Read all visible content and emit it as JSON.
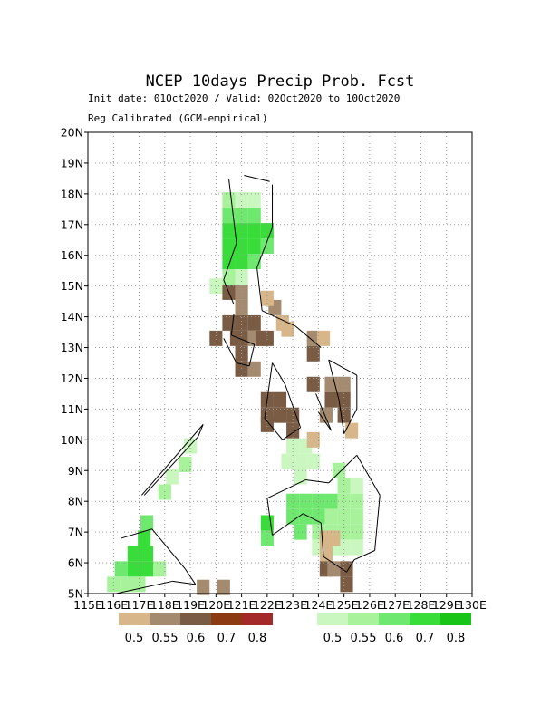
{
  "chart_data": {
    "type": "heatmap",
    "title": "NCEP 10days Precip Prob. Fcst",
    "subtitle_lines": [
      "Init date: 01Oct2020 / Valid: 02Oct2020 to 10Oct2020",
      "Reg Calibrated (GCM-empirical)"
    ],
    "xlim": [
      115,
      130
    ],
    "ylim": [
      5,
      20
    ],
    "grid": true,
    "cell_size_deg": 0.5,
    "x_ticks": [
      "115E",
      "116E",
      "117E",
      "118E",
      "119E",
      "120E",
      "121E",
      "122E",
      "123E",
      "124E",
      "125E",
      "126E",
      "127E",
      "128E",
      "129E",
      "130E"
    ],
    "y_ticks": [
      "5N",
      "6N",
      "7N",
      "8N",
      "9N",
      "10N",
      "11N",
      "12N",
      "13N",
      "14N",
      "15N",
      "16N",
      "17N",
      "18N",
      "19N",
      "20N"
    ],
    "legend_dry": {
      "colors": [
        "#D7B68A",
        "#A48A6E",
        "#7A5C44",
        "#8B3A12",
        "#A42A2A"
      ],
      "labels": [
        "0.5",
        "0.55",
        "0.6",
        "0.7",
        "0.8"
      ]
    },
    "legend_wet": {
      "colors": [
        "#C9F7BF",
        "#A8F29C",
        "#6FE86F",
        "#39DD39",
        "#18C418"
      ],
      "labels": [
        "0.5",
        "0.55",
        "0.6",
        "0.7",
        "0.8"
      ]
    },
    "cells_wet": [
      [
        120.5,
        17.8,
        1
      ],
      [
        121,
        17.8,
        0
      ],
      [
        121.5,
        17.8,
        0
      ],
      [
        120.5,
        17.3,
        2
      ],
      [
        121,
        17.3,
        2
      ],
      [
        121.5,
        17.3,
        2
      ],
      [
        120.5,
        16.8,
        3
      ],
      [
        121,
        16.8,
        3
      ],
      [
        121.5,
        16.8,
        3
      ],
      [
        122,
        16.8,
        3
      ],
      [
        120.5,
        16.3,
        3
      ],
      [
        121,
        16.3,
        3
      ],
      [
        121.5,
        16.3,
        3
      ],
      [
        122,
        16.3,
        2
      ],
      [
        120.5,
        15.8,
        3
      ],
      [
        121,
        15.8,
        3
      ],
      [
        121.5,
        15.8,
        2
      ],
      [
        120.5,
        15.3,
        1
      ],
      [
        121,
        15.3,
        0
      ],
      [
        120,
        15,
        0
      ],
      [
        119,
        9.8,
        0
      ],
      [
        118.8,
        9.2,
        1
      ],
      [
        118.3,
        8.8,
        0
      ],
      [
        118,
        8.3,
        1
      ],
      [
        117.3,
        7.3,
        2
      ],
      [
        117.2,
        6.8,
        3
      ],
      [
        116.8,
        6.3,
        3
      ],
      [
        117.3,
        6.3,
        3
      ],
      [
        116.3,
        5.8,
        2
      ],
      [
        116.8,
        5.8,
        3
      ],
      [
        117.3,
        5.8,
        3
      ],
      [
        117.8,
        5.8,
        1
      ],
      [
        116,
        5.3,
        1
      ],
      [
        116.5,
        5.3,
        1
      ],
      [
        117,
        5.3,
        1
      ],
      [
        122,
        7.3,
        3
      ],
      [
        122,
        6.8,
        2
      ],
      [
        123,
        9.8,
        0
      ],
      [
        123.5,
        9.8,
        0
      ],
      [
        122.8,
        9.3,
        0
      ],
      [
        123.3,
        9.3,
        0
      ],
      [
        123.8,
        9.3,
        0
      ],
      [
        123.3,
        8.8,
        0
      ],
      [
        124.8,
        9,
        1
      ],
      [
        125,
        8.5,
        1
      ],
      [
        125.5,
        8.5,
        0
      ],
      [
        123,
        8,
        2
      ],
      [
        123.5,
        8,
        2
      ],
      [
        124,
        8,
        2
      ],
      [
        124.5,
        8,
        2
      ],
      [
        125,
        8,
        1
      ],
      [
        125.5,
        8,
        1
      ],
      [
        123,
        7.5,
        2
      ],
      [
        123.5,
        7.5,
        2
      ],
      [
        124,
        7.5,
        2
      ],
      [
        124.5,
        7.5,
        1
      ],
      [
        125,
        7.5,
        1
      ],
      [
        125.5,
        7.5,
        1
      ],
      [
        123.3,
        7,
        2
      ],
      [
        124,
        7,
        1
      ],
      [
        124.5,
        7,
        1
      ],
      [
        125,
        7,
        1
      ],
      [
        125.5,
        7,
        1
      ],
      [
        124,
        6.5,
        0
      ],
      [
        124.5,
        6.5,
        0
      ],
      [
        125,
        6.5,
        0
      ],
      [
        125.5,
        6.5,
        0
      ]
    ],
    "cells_dry": [
      [
        120.5,
        14.8,
        2
      ],
      [
        121,
        14.8,
        1
      ],
      [
        121,
        14.3,
        1
      ],
      [
        120.5,
        13.8,
        2
      ],
      [
        121,
        13.8,
        2
      ],
      [
        121.5,
        13.8,
        2
      ],
      [
        120,
        13.3,
        2
      ],
      [
        120.8,
        13.3,
        2
      ],
      [
        121,
        13.3,
        2
      ],
      [
        121.5,
        13.3,
        1
      ],
      [
        121.8,
        13.3,
        2
      ],
      [
        122,
        13.3,
        2
      ],
      [
        121,
        12.8,
        2
      ],
      [
        121,
        12.3,
        2
      ],
      [
        121.5,
        12.3,
        1
      ],
      [
        122.3,
        14.3,
        1
      ],
      [
        122,
        14.6,
        0
      ],
      [
        122.6,
        13.8,
        0
      ],
      [
        122.8,
        13.6,
        0
      ],
      [
        123.8,
        13.3,
        1
      ],
      [
        124.2,
        13.3,
        0
      ],
      [
        123.8,
        12.8,
        2
      ],
      [
        123.8,
        11.8,
        2
      ],
      [
        124.5,
        11.8,
        1
      ],
      [
        125,
        11.8,
        1
      ],
      [
        124.5,
        11.3,
        2
      ],
      [
        125,
        11.3,
        2
      ],
      [
        124.3,
        10.8,
        1
      ],
      [
        125,
        10.8,
        2
      ],
      [
        125.3,
        10.3,
        0
      ],
      [
        122,
        11.3,
        2
      ],
      [
        122.5,
        11.3,
        2
      ],
      [
        122,
        10.8,
        2
      ],
      [
        122.5,
        10.8,
        2
      ],
      [
        123,
        10.8,
        2
      ],
      [
        122,
        10.5,
        2
      ],
      [
        123,
        10.3,
        2
      ],
      [
        123.8,
        10,
        0
      ],
      [
        124.3,
        6.8,
        0
      ],
      [
        124.6,
        6.8,
        0
      ],
      [
        124.3,
        6.3,
        0
      ],
      [
        124.3,
        5.8,
        2
      ],
      [
        124.6,
        5.8,
        1
      ],
      [
        125.1,
        5.8,
        2
      ],
      [
        125.1,
        5.3,
        2
      ],
      [
        119.5,
        5.2,
        1
      ],
      [
        120.3,
        5.2,
        1
      ]
    ],
    "coast_x_edges": [
      [
        121.1,
        18.6,
        122.1,
        18.4
      ],
      [
        120.5,
        18.5,
        120.8,
        16.4
      ],
      [
        120.8,
        16.4,
        120.3,
        15.2
      ],
      [
        120.3,
        15.2,
        120.7,
        14.4
      ],
      [
        122.2,
        18.3,
        122.2,
        16.9
      ],
      [
        122.2,
        16.9,
        121.6,
        15.6
      ],
      [
        121.6,
        15.6,
        121.8,
        14.2
      ],
      [
        121.8,
        14.2,
        123.1,
        13.7
      ],
      [
        123.1,
        13.7,
        124.1,
        13
      ],
      [
        120.7,
        14.1,
        120.6,
        13.4
      ],
      [
        120.6,
        13.4,
        121.5,
        13.1
      ],
      [
        121.5,
        13.1,
        121.3,
        12.4
      ],
      [
        121.3,
        12.4,
        120.8,
        12.5
      ],
      [
        120.8,
        12.5,
        120.3,
        13.3
      ],
      [
        122.2,
        12.5,
        122.7,
        11.8
      ],
      [
        122.7,
        11.8,
        123.3,
        10.4
      ],
      [
        123.3,
        10.4,
        122.6,
        10
      ],
      [
        122.6,
        10,
        121.9,
        10.7
      ],
      [
        121.9,
        10.7,
        122.2,
        12.5
      ],
      [
        123.9,
        11.5,
        124.5,
        10.3
      ],
      [
        124.5,
        10.3,
        124,
        10.9
      ],
      [
        124.4,
        12.6,
        125.5,
        12.1
      ],
      [
        125.5,
        12.1,
        125.5,
        11
      ],
      [
        125.5,
        11,
        125,
        10.2
      ],
      [
        125,
        10.2,
        124.8,
        11.3
      ],
      [
        124.8,
        11.3,
        124.4,
        12.6
      ],
      [
        122,
        8.1,
        123.5,
        8.7
      ],
      [
        123.5,
        8.7,
        124.4,
        8.6
      ],
      [
        124.4,
        8.6,
        125.5,
        9.5
      ],
      [
        125.5,
        9.5,
        126.4,
        8.2
      ],
      [
        126.4,
        8.2,
        126.2,
        6.4
      ],
      [
        126.2,
        6.4,
        125.4,
        6.1
      ],
      [
        125.4,
        6.1,
        125.1,
        5.7
      ],
      [
        125.1,
        5.7,
        124.2,
        6.2
      ],
      [
        124.2,
        6.2,
        124.1,
        7.3
      ],
      [
        124.1,
        7.3,
        123.4,
        7.6
      ],
      [
        123.4,
        7.6,
        122.2,
        6.9
      ],
      [
        122.2,
        6.9,
        122,
        8.1
      ],
      [
        117.1,
        8.2,
        119.5,
        10.5
      ],
      [
        119.5,
        10.5,
        119.3,
        10.1
      ],
      [
        119.3,
        10.1,
        117.2,
        8.2
      ],
      [
        116.3,
        6.8,
        117.5,
        7.1
      ],
      [
        117.5,
        7.1,
        118.8,
        5.8
      ],
      [
        118.8,
        5.8,
        119.2,
        5.3
      ],
      [
        119.2,
        5.3,
        118.3,
        5.4
      ],
      [
        118.3,
        5.4,
        116.1,
        5
      ]
    ]
  }
}
